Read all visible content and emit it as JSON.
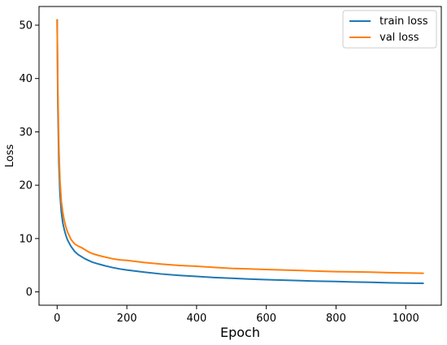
{
  "chart_data": {
    "type": "line",
    "title": "",
    "xlabel": "Epoch",
    "ylabel": "Loss",
    "xlim": [
      -52,
      1102
    ],
    "ylim": [
      -2.5,
      53.5
    ],
    "xticks": [
      0,
      200,
      400,
      600,
      800,
      1000
    ],
    "yticks": [
      0,
      10,
      20,
      30,
      40,
      50
    ],
    "grid": false,
    "legend": "top-right",
    "series": [
      {
        "name": "train loss",
        "color": "#1f77b4",
        "x": [
          0,
          2,
          5,
          8,
          12,
          16,
          20,
          25,
          30,
          40,
          50,
          60,
          70,
          80,
          90,
          100,
          120,
          140,
          160,
          180,
          200,
          250,
          300,
          350,
          400,
          450,
          500,
          550,
          600,
          650,
          700,
          750,
          800,
          850,
          900,
          950,
          1000,
          1050
        ],
        "y": [
          51,
          35,
          24,
          18.5,
          15,
          13,
          11.8,
          10.6,
          9.7,
          8.5,
          7.6,
          7.0,
          6.6,
          6.2,
          5.9,
          5.6,
          5.2,
          4.85,
          4.55,
          4.3,
          4.1,
          3.7,
          3.35,
          3.1,
          2.9,
          2.7,
          2.55,
          2.4,
          2.3,
          2.2,
          2.1,
          2.0,
          1.95,
          1.85,
          1.8,
          1.7,
          1.65,
          1.6
        ]
      },
      {
        "name": "val loss",
        "color": "#ff7f0e",
        "x": [
          0,
          2,
          5,
          8,
          12,
          16,
          20,
          25,
          30,
          40,
          50,
          60,
          70,
          80,
          90,
          100,
          120,
          140,
          160,
          180,
          200,
          250,
          300,
          350,
          400,
          450,
          500,
          550,
          600,
          650,
          700,
          750,
          800,
          850,
          900,
          950,
          1000,
          1050
        ],
        "y": [
          51,
          38,
          27,
          21,
          17,
          15,
          13.5,
          12.2,
          11.2,
          9.8,
          9.0,
          8.6,
          8.3,
          7.9,
          7.5,
          7.2,
          6.8,
          6.5,
          6.2,
          6.0,
          5.9,
          5.5,
          5.2,
          4.95,
          4.8,
          4.6,
          4.4,
          4.3,
          4.2,
          4.1,
          4.0,
          3.9,
          3.8,
          3.75,
          3.7,
          3.6,
          3.55,
          3.5
        ]
      }
    ]
  }
}
